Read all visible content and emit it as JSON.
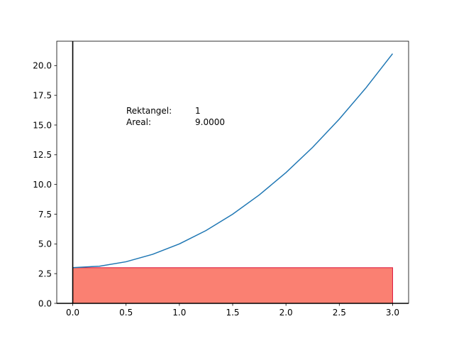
{
  "chart_data": {
    "type": "line",
    "title": "",
    "xlabel": "",
    "ylabel": "",
    "xlim": [
      -0.15,
      3.15
    ],
    "ylim": [
      0,
      22.05
    ],
    "grid": false,
    "x_ticks": [
      0.0,
      0.5,
      1.0,
      1.5,
      2.0,
      2.5,
      3.0
    ],
    "x_tick_labels": [
      "0.0",
      "0.5",
      "1.0",
      "1.5",
      "2.0",
      "2.5",
      "3.0"
    ],
    "y_ticks": [
      0.0,
      2.5,
      5.0,
      7.5,
      10.0,
      12.5,
      15.0,
      17.5,
      20.0
    ],
    "y_tick_labels": [
      "0.0",
      "2.5",
      "5.0",
      "7.5",
      "10.0",
      "12.5",
      "15.0",
      "17.5",
      "20.0"
    ],
    "series": [
      {
        "x": [
          0.0,
          0.25,
          0.5,
          0.75,
          1.0,
          1.25,
          1.5,
          1.75,
          2.0,
          2.25,
          2.5,
          2.75,
          3.0
        ],
        "values": [
          3.0,
          3.125,
          3.5,
          4.125,
          5.0,
          6.125,
          7.5,
          9.125,
          11.0,
          13.125,
          15.5,
          18.125,
          21.0
        ],
        "color": "#1f77b4"
      }
    ],
    "rectangles": [
      {
        "x0": 0.0,
        "x1": 3.0,
        "y0": 0.0,
        "height": 3.0,
        "fill": "#fa8072",
        "edge": "#dc143c"
      }
    ],
    "annotations": {
      "rect_label": "Rektangel:",
      "rect_value": "1",
      "area_label": "Areal:",
      "area_value": "9.0000"
    }
  }
}
